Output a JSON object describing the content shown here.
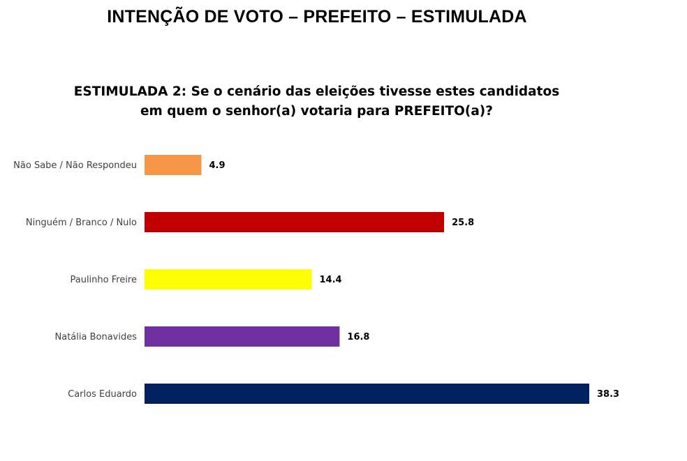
{
  "header": {
    "title": "INTENÇÃO DE VOTO – PREFEITO – ESTIMULADA"
  },
  "chart_data": {
    "type": "bar",
    "orientation": "horizontal",
    "title": "ESTIMULADA 2: Se o cenário das eleições tivesse estes candidatos em quem o senhor(a) votaria para PREFEITO(a)?",
    "categories": [
      "Não Sabe / Não Respondeu",
      "Ninguém / Branco / Nulo",
      "Paulinho Freire",
      "Natália Bonavides",
      "Carlos Eduardo"
    ],
    "values": [
      4.9,
      25.8,
      14.4,
      16.8,
      38.3
    ],
    "value_labels": [
      "4.9",
      "25.8",
      "14.4",
      "16.8",
      "38.3"
    ],
    "colors": [
      "#F79646",
      "#C00000",
      "#FFFF00",
      "#7030A0",
      "#002060"
    ],
    "xlim": [
      0,
      40
    ],
    "grid": false,
    "legend": "none"
  }
}
